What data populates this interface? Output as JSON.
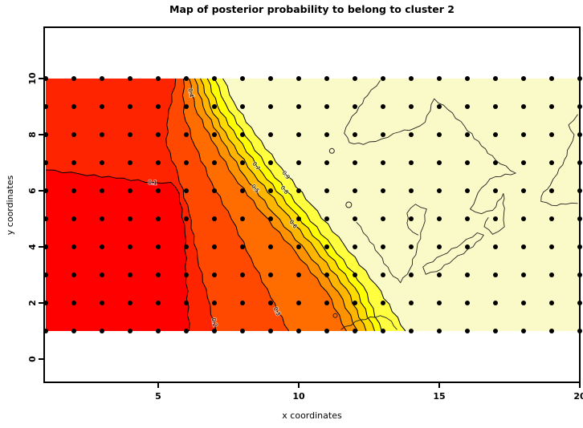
{
  "figure": {
    "title": "Map of posterior probability to belong to cluster  2",
    "xlabel": "x coordinates",
    "ylabel": "y coordinates"
  },
  "chart_data": {
    "type": "filled-contour",
    "title": "Map of posterior probability to belong to cluster  2",
    "xlabel": "x coordinates",
    "ylabel": "y coordinates",
    "x_domain": [
      1,
      20
    ],
    "y_domain": [
      1,
      10
    ],
    "x_ticks": [
      5,
      10,
      15,
      20
    ],
    "y_ticks": [
      0,
      2,
      4,
      6,
      8,
      10
    ],
    "grid_on": false,
    "legend": "none",
    "levels": [
      0.1,
      0.2,
      0.3,
      0.4,
      0.5,
      0.6,
      0.7,
      0.8,
      0.9
    ],
    "palette": [
      "#FF0000",
      "#FF2400",
      "#FF4900",
      "#FF6D00",
      "#FF9200",
      "#FFB600",
      "#FFDB00",
      "#FFFF00",
      "#FFFF40",
      "#FAFAC8"
    ],
    "low_side": "left-red-low-probability",
    "high_side": "right-pale-high-probability",
    "grid_points": {
      "x_min": 1,
      "x_max": 20,
      "y_min": 1,
      "y_max": 10,
      "step": 1,
      "color": "#000000"
    },
    "front_lines": [
      {
        "level": 0.1,
        "points": [
          [
            1,
            6.74
          ],
          [
            2.2,
            6.6
          ],
          [
            3.5,
            6.45
          ],
          [
            4.8,
            6.3
          ],
          [
            5.45,
            6.3
          ],
          [
            5.75,
            5.9
          ],
          [
            5.95,
            4.5
          ],
          [
            6.0,
            3.0
          ],
          [
            6.1,
            1
          ]
        ]
      },
      {
        "level": 0.2,
        "points": [
          [
            5.62,
            10
          ],
          [
            5.35,
            8.6
          ],
          [
            5.3,
            7.6
          ],
          [
            5.7,
            6.6
          ],
          [
            6.1,
            5.2
          ],
          [
            6.4,
            3.6
          ],
          [
            6.75,
            2.2
          ],
          [
            7.05,
            1
          ]
        ]
      },
      {
        "level": 0.3,
        "points": [
          [
            5.9,
            10
          ],
          [
            5.9,
            8.8
          ],
          [
            6.3,
            7.6
          ],
          [
            6.9,
            6.3
          ],
          [
            7.6,
            5.0
          ],
          [
            8.3,
            3.6
          ],
          [
            9.0,
            2.2
          ],
          [
            9.65,
            1
          ]
        ]
      },
      {
        "level": 0.4,
        "points": [
          [
            6.1,
            10
          ],
          [
            6.3,
            9.0
          ],
          [
            6.9,
            7.8
          ],
          [
            7.7,
            6.5
          ],
          [
            8.7,
            5.2
          ],
          [
            9.9,
            3.8
          ],
          [
            11.0,
            2.4
          ],
          [
            11.7,
            1
          ]
        ]
      },
      {
        "level": 0.5,
        "points": [
          [
            6.3,
            10
          ],
          [
            6.6,
            9.0
          ],
          [
            7.25,
            7.8
          ],
          [
            8.1,
            6.5
          ],
          [
            9.1,
            5.2
          ],
          [
            10.3,
            3.8
          ],
          [
            11.4,
            2.4
          ],
          [
            12.1,
            1
          ]
        ]
      },
      {
        "level": 0.6,
        "points": [
          [
            6.5,
            10
          ],
          [
            6.85,
            9.0
          ],
          [
            7.5,
            7.85
          ],
          [
            8.4,
            6.6
          ],
          [
            9.45,
            5.3
          ],
          [
            10.6,
            3.9
          ],
          [
            11.7,
            2.5
          ],
          [
            12.4,
            1
          ]
        ]
      },
      {
        "level": 0.7,
        "points": [
          [
            6.75,
            10
          ],
          [
            7.1,
            9.05
          ],
          [
            7.8,
            7.9
          ],
          [
            8.7,
            6.65
          ],
          [
            9.75,
            5.35
          ],
          [
            10.9,
            3.95
          ],
          [
            12.0,
            2.55
          ],
          [
            12.7,
            1
          ]
        ]
      },
      {
        "level": 0.8,
        "points": [
          [
            7.0,
            10
          ],
          [
            7.4,
            9.1
          ],
          [
            8.1,
            7.95
          ],
          [
            9.0,
            6.7
          ],
          [
            10.05,
            5.4
          ],
          [
            11.2,
            4.0
          ],
          [
            12.3,
            2.6
          ],
          [
            12.95,
            1
          ]
        ]
      },
      {
        "level": 0.9,
        "points": [
          [
            7.3,
            10
          ],
          [
            7.7,
            9.15
          ],
          [
            8.45,
            8.0
          ],
          [
            9.4,
            6.8
          ],
          [
            10.45,
            5.5
          ],
          [
            11.6,
            4.1
          ],
          [
            12.75,
            2.65
          ],
          [
            13.8,
            1
          ]
        ]
      }
    ],
    "contour_labels": [
      {
        "text": "0.1",
        "level_index": 0,
        "x": 4.85,
        "y": 6.22
      },
      {
        "text": "0.2",
        "level_index": 1,
        "x": 7.02,
        "y": 1.45
      },
      {
        "text": "0.3",
        "level_index": 2,
        "x": 9.35,
        "y": 1.7
      },
      {
        "text": "0.4",
        "level_index": 3,
        "x": 6.2,
        "y": 9.55
      },
      {
        "text": "0.5",
        "level_index": 4,
        "x": 8.3,
        "y": 6.1
      },
      {
        "text": "0.6",
        "level_index": 5,
        "x": 9.5,
        "y": 4.72
      },
      {
        "text": "0.7",
        "level_index": 6,
        "x": 8.1,
        "y": 6.82
      },
      {
        "text": "0.8",
        "level_index": 7,
        "x": 9.0,
        "y": 5.78
      },
      {
        "text": "0.9",
        "level_index": 8,
        "x": 8.88,
        "y": 6.28
      }
    ],
    "islands": [
      {
        "type": "path",
        "closed": false,
        "points": [
          [
            12.9,
            9.93
          ],
          [
            12.45,
            9.4
          ],
          [
            12.15,
            9.0
          ],
          [
            11.8,
            8.45
          ],
          [
            11.62,
            8.05
          ],
          [
            11.8,
            7.72
          ],
          [
            12.3,
            7.65
          ],
          [
            12.95,
            7.85
          ],
          [
            13.6,
            8.1
          ],
          [
            14.1,
            8.22
          ],
          [
            14.5,
            8.45
          ],
          [
            14.82,
            9.28
          ],
          [
            15.3,
            8.9
          ],
          [
            15.9,
            8.3
          ],
          [
            16.5,
            7.6
          ],
          [
            17.0,
            7.1
          ],
          [
            17.72,
            6.63
          ],
          [
            17.0,
            6.5
          ],
          [
            16.8,
            6.42
          ],
          [
            16.5,
            6.1
          ],
          [
            16.3,
            5.72
          ],
          [
            16.1,
            5.35
          ],
          [
            16.5,
            5.18
          ],
          [
            16.9,
            5.3
          ],
          [
            17.28,
            5.9
          ],
          [
            17.3,
            5.2
          ],
          [
            17.32,
            4.72
          ],
          [
            16.9,
            4.45
          ],
          [
            16.6,
            4.72
          ],
          [
            16.75,
            5.05
          ]
        ]
      },
      {
        "type": "path",
        "closed": false,
        "points": [
          [
            19.93,
            8.72
          ],
          [
            19.6,
            8.35
          ],
          [
            19.8,
            8.0
          ],
          [
            19.65,
            7.6
          ],
          [
            19.45,
            7.1
          ],
          [
            19.2,
            6.6
          ],
          [
            18.95,
            6.2
          ],
          [
            18.7,
            5.95
          ],
          [
            18.62,
            5.62
          ],
          [
            19.0,
            5.48
          ],
          [
            19.5,
            5.52
          ],
          [
            19.93,
            5.55
          ]
        ]
      },
      {
        "type": "path",
        "closed": false,
        "points": [
          [
            12.05,
            4.88
          ],
          [
            12.45,
            4.35
          ],
          [
            12.85,
            3.75
          ],
          [
            13.25,
            3.1
          ],
          [
            13.62,
            2.72
          ],
          [
            13.95,
            3.2
          ],
          [
            14.2,
            3.9
          ],
          [
            14.42,
            4.7
          ],
          [
            14.55,
            5.35
          ],
          [
            14.15,
            5.52
          ],
          [
            13.85,
            5.2
          ],
          [
            13.9,
            4.68
          ],
          [
            14.25,
            4.42
          ]
        ]
      },
      {
        "type": "path",
        "closed": true,
        "points": [
          [
            14.42,
            3.28
          ],
          [
            15.1,
            3.7
          ],
          [
            15.8,
            4.12
          ],
          [
            16.35,
            4.5
          ],
          [
            16.58,
            4.42
          ],
          [
            16.2,
            4.0
          ],
          [
            15.5,
            3.55
          ],
          [
            14.9,
            3.12
          ],
          [
            14.52,
            3.02
          ]
        ]
      },
      {
        "type": "path",
        "closed": false,
        "points": [
          [
            11.5,
            1.05
          ],
          [
            12.2,
            1.4
          ],
          [
            12.9,
            1.55
          ],
          [
            13.3,
            1.35
          ],
          [
            13.5,
            1.05
          ]
        ]
      },
      {
        "type": "circle",
        "x": 11.18,
        "y": 7.42,
        "r": 3
      },
      {
        "type": "circle",
        "x": 11.78,
        "y": 5.5,
        "r": 3.5
      },
      {
        "type": "circle",
        "x": 11.3,
        "y": 1.55,
        "r": 2.5
      }
    ]
  }
}
